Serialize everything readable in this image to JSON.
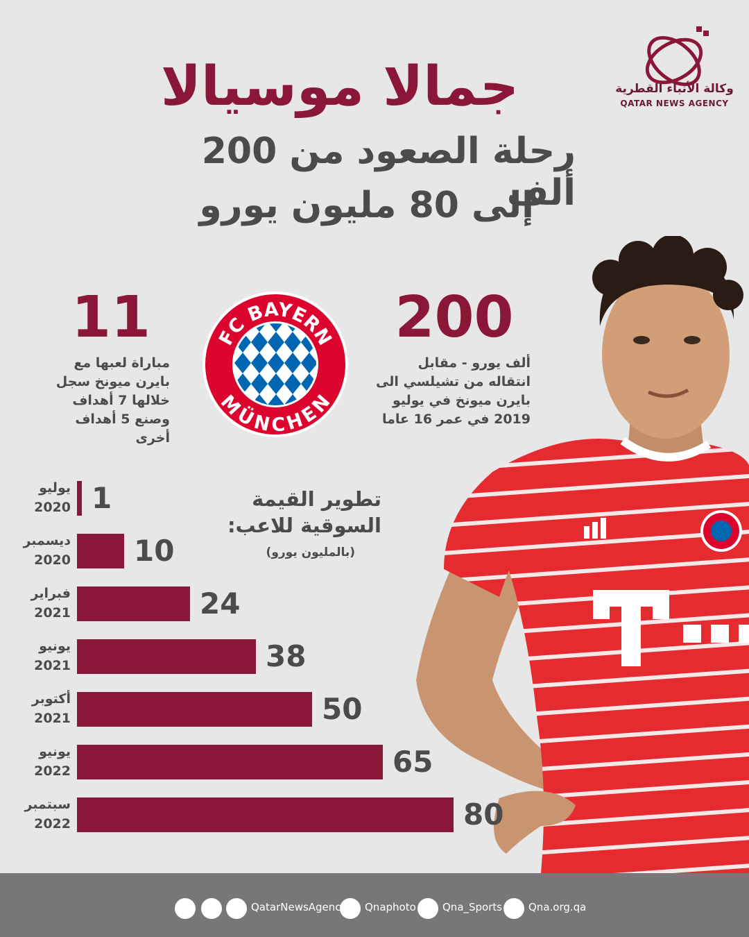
{
  "header": {
    "title": "جمالا موسيالا",
    "subtitle_line1": "رحلة الصعود من 200 ألف",
    "subtitle_line2": "إلى 80 مليون يورو"
  },
  "agency": {
    "name_ar": "وكالة الأنباء القطرية",
    "name_en": "QATAR NEWS AGENCY",
    "brand_color": "#8b1738"
  },
  "stats": {
    "transfer": {
      "value": "200",
      "description": "ألف يورو - مقابل انتقاله من تشيلسي الى بايرن ميونخ في يوليو 2019 في عمر 16 عاما"
    },
    "matches": {
      "value": "11",
      "description": "مباراة لعبها مع بايرن ميونخ سجل خلالها 7 أهداف وصنع 5 أهداف أخرى"
    }
  },
  "club_logo": {
    "top_text": "FC BAYERN",
    "bottom_text": "MÜNCHEN"
  },
  "chart_data": {
    "type": "bar",
    "orientation": "horizontal",
    "title": "تطوير القيمة السوقية للاعب:",
    "unit": "(بالمليون يورو)",
    "categories": [
      "يوليو 2020",
      "ديسمبر 2020",
      "فبراير 2021",
      "يونيو 2021",
      "أكتوبر 2021",
      "يونيو 2022",
      "سبتمبر 2022"
    ],
    "values": [
      1,
      10,
      24,
      38,
      50,
      65,
      80
    ],
    "xlim": [
      0,
      80
    ],
    "bar_color": "#8b1738",
    "grid": false,
    "legend": "none"
  },
  "footer": {
    "social_handle": "QatarNewsAgency",
    "instagram": "Qnaphoto",
    "twitter_sports": "Qna_Sports",
    "website": "Qna.org.qa",
    "icons": [
      "telegram-icon",
      "facebook-icon",
      "twitter-icon",
      "instagram-icon",
      "twitter-icon",
      "globe-icon"
    ]
  }
}
